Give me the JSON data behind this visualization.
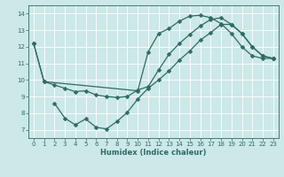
{
  "xlabel": "Humidex (Indice chaleur)",
  "bg_color": "#cce8e8",
  "grid_color": "#ffffff",
  "line_color": "#2e6b62",
  "xlim": [
    -0.5,
    23.5
  ],
  "ylim": [
    6.5,
    14.5
  ],
  "xticks": [
    0,
    1,
    2,
    3,
    4,
    5,
    6,
    7,
    8,
    9,
    10,
    11,
    12,
    13,
    14,
    15,
    16,
    17,
    18,
    19,
    20,
    21,
    22,
    23
  ],
  "yticks": [
    7,
    8,
    9,
    10,
    11,
    12,
    13,
    14
  ],
  "line1_x": [
    0,
    1,
    2,
    3,
    4,
    5,
    6,
    7,
    8,
    9,
    10,
    11,
    12,
    13,
    14,
    15,
    16,
    17,
    18,
    19,
    20,
    21,
    22,
    23
  ],
  "line1_y": [
    12.2,
    9.9,
    9.7,
    9.5,
    9.3,
    9.35,
    9.1,
    9.0,
    8.95,
    9.0,
    9.4,
    9.6,
    10.6,
    11.55,
    12.2,
    12.75,
    13.25,
    13.65,
    13.75,
    13.35,
    12.8,
    12.0,
    11.45,
    11.3
  ],
  "line2_x": [
    0,
    1,
    10,
    11,
    12,
    13,
    14,
    15,
    16,
    17,
    18,
    19,
    20,
    21,
    22,
    23
  ],
  "line2_y": [
    12.2,
    9.9,
    9.35,
    11.7,
    12.8,
    13.1,
    13.55,
    13.85,
    13.9,
    13.75,
    13.4,
    12.8,
    12.0,
    11.45,
    11.3,
    11.3
  ],
  "line3_x": [
    2,
    3,
    4,
    5,
    6,
    7,
    8,
    9,
    10,
    11,
    12,
    13,
    14,
    15,
    16,
    17,
    18,
    19,
    20,
    21,
    22,
    23
  ],
  "line3_y": [
    8.6,
    7.7,
    7.3,
    7.65,
    7.15,
    7.05,
    7.5,
    8.05,
    8.85,
    9.5,
    10.0,
    10.55,
    11.2,
    11.75,
    12.4,
    12.85,
    13.35,
    13.35,
    12.8,
    12.0,
    11.45,
    11.3
  ],
  "marker_size": 2.5,
  "line_width": 0.9,
  "tick_fontsize": 5.0,
  "xlabel_fontsize": 6.0
}
